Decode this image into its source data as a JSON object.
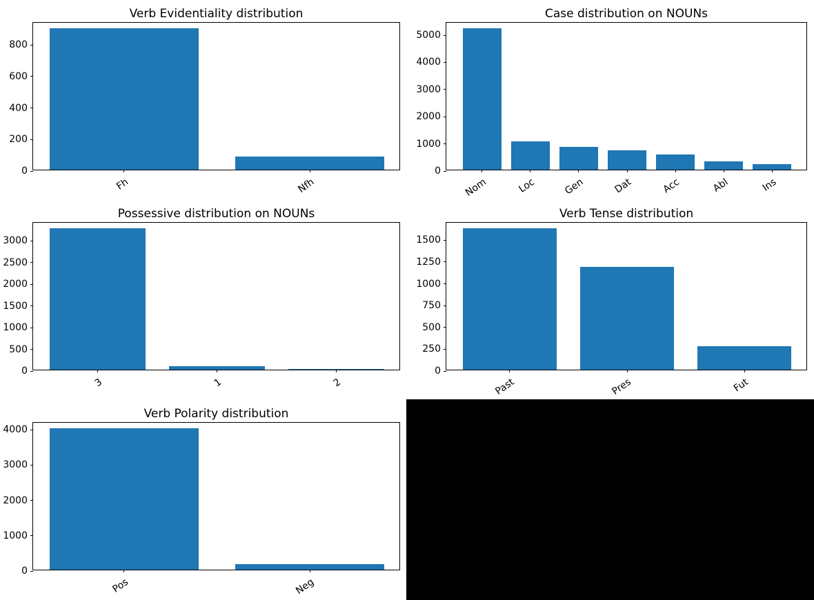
{
  "figure": {
    "background": "#ffffff",
    "bar_color": "#1f77b4",
    "text_color": "#000000",
    "black_panel_color": "#000000"
  },
  "chart_data": [
    {
      "id": "verb-evidentiality",
      "type": "bar",
      "title": "Verb Evidentiality distribution",
      "categories": [
        "Fh",
        "Nfh"
      ],
      "values": [
        895,
        85
      ],
      "yticks": [
        0,
        200,
        400,
        600,
        800
      ],
      "ylim": [
        0,
        940
      ],
      "xlabel": "",
      "ylabel": "",
      "grid": false
    },
    {
      "id": "case-nouns",
      "type": "bar",
      "title": "Case distribution on NOUNs",
      "categories": [
        "Nom",
        "Loc",
        "Gen",
        "Dat",
        "Acc",
        "Abl",
        "Ins"
      ],
      "values": [
        5200,
        1050,
        850,
        700,
        570,
        310,
        200
      ],
      "yticks": [
        0,
        1000,
        2000,
        3000,
        4000,
        5000
      ],
      "ylim": [
        0,
        5460
      ],
      "xlabel": "",
      "ylabel": "",
      "grid": false
    },
    {
      "id": "possessive-nouns",
      "type": "bar",
      "title": "Possessive distribution on NOUNs",
      "categories": [
        "3",
        "1",
        "2"
      ],
      "values": [
        3250,
        85,
        20
      ],
      "yticks": [
        0,
        500,
        1000,
        1500,
        2000,
        2500,
        3000
      ],
      "ylim": [
        0,
        3415
      ],
      "xlabel": "",
      "ylabel": "",
      "grid": false
    },
    {
      "id": "verb-tense",
      "type": "bar",
      "title": "Verb Tense distribution",
      "categories": [
        "Past",
        "Pres",
        "Fut"
      ],
      "values": [
        1620,
        1180,
        270
      ],
      "yticks": [
        0,
        250,
        500,
        750,
        1000,
        1250,
        1500
      ],
      "ylim": [
        0,
        1700
      ],
      "xlabel": "",
      "ylabel": "",
      "grid": false
    },
    {
      "id": "verb-polarity",
      "type": "bar",
      "title": "Verb Polarity distribution",
      "categories": [
        "Pos",
        "Neg"
      ],
      "values": [
        4000,
        150
      ],
      "yticks": [
        0,
        1000,
        2000,
        3000,
        4000
      ],
      "ylim": [
        0,
        4200
      ],
      "xlabel": "",
      "ylabel": "",
      "grid": false
    }
  ]
}
